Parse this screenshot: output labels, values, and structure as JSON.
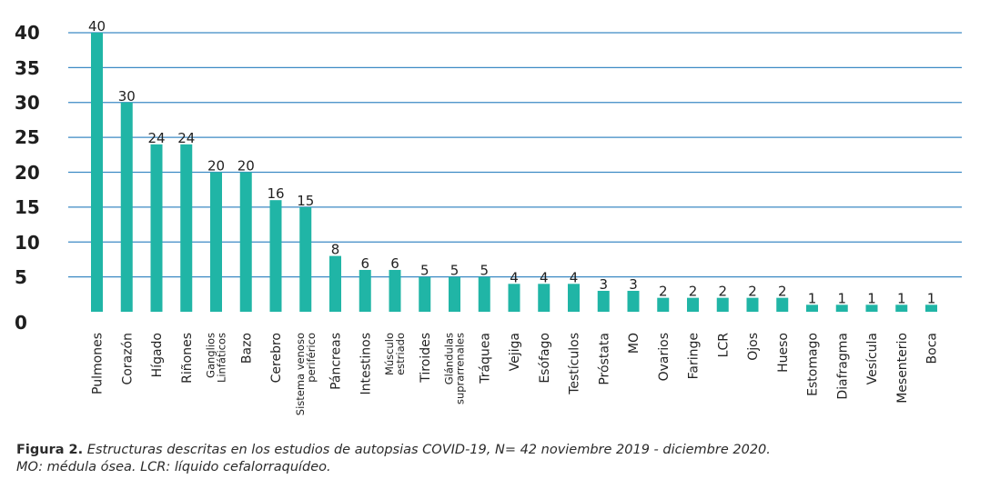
{
  "chart_data": {
    "type": "bar",
    "title": "",
    "xlabel": "",
    "ylabel": "",
    "ylim": [
      0,
      40
    ],
    "yticks": [
      0,
      5,
      10,
      15,
      20,
      25,
      30,
      35,
      40
    ],
    "grid": true,
    "bar_color": "#20b5a6",
    "grid_color": "#3c8ac4",
    "categories": [
      [
        "Pulmones"
      ],
      [
        "Corazón"
      ],
      [
        "Hígado"
      ],
      [
        "Riñones"
      ],
      [
        "Ganglios",
        "Linfáticos"
      ],
      [
        "Bazo"
      ],
      [
        "Cerebro"
      ],
      [
        "Sistema venoso",
        "periférico"
      ],
      [
        "Páncreas"
      ],
      [
        "Intestinos"
      ],
      [
        "Músculo",
        "estriado"
      ],
      [
        "Tiroides"
      ],
      [
        "Glándulas",
        "suprarrenales"
      ],
      [
        "Tráquea"
      ],
      [
        "Vejiga"
      ],
      [
        "Esófago"
      ],
      [
        "Testículos"
      ],
      [
        "Próstata"
      ],
      [
        "MO"
      ],
      [
        "Ovarios"
      ],
      [
        "Faringe"
      ],
      [
        "LCR"
      ],
      [
        "Ojos"
      ],
      [
        "Hueso"
      ],
      [
        "Estomago"
      ],
      [
        "Diafragma"
      ],
      [
        "Vesícula"
      ],
      [
        "Mesenterio"
      ],
      [
        "Boca"
      ]
    ],
    "values": [
      40,
      30,
      24,
      24,
      20,
      20,
      16,
      15,
      8,
      6,
      6,
      5,
      5,
      5,
      4,
      4,
      4,
      3,
      3,
      2,
      2,
      2,
      2,
      2,
      1,
      1,
      1,
      1,
      1
    ]
  },
  "caption": {
    "label": "Figura 2.",
    "line1": "Estructuras descritas en los estudios de autopsias COVID-19, N= 42 noviembre 2019 - diciembre 2020.",
    "line2": "MO: médula ósea. LCR: líquido cefalorraquídeo."
  }
}
